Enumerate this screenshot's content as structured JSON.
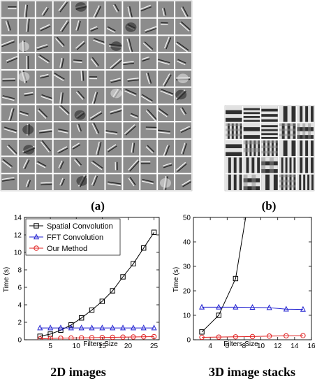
{
  "panels": {
    "a": {
      "label": "(a)",
      "rows": 11,
      "cols": 11
    },
    "b": {
      "label": "(b)",
      "rows": 5,
      "cols": 5
    }
  },
  "chart_data": [
    {
      "type": "line",
      "title": "",
      "caption": "2D images",
      "xlabel": "Filters Size",
      "ylabel": "Time (s)",
      "xlim": [
        0,
        26
      ],
      "ylim": [
        0,
        14
      ],
      "xticks": [
        5,
        10,
        15,
        20,
        25
      ],
      "yticks": [
        0,
        2,
        4,
        6,
        8,
        10,
        12,
        14
      ],
      "grid": false,
      "legend": "top-left",
      "x": [
        3,
        5,
        7,
        9,
        11,
        13,
        15,
        17,
        19,
        21,
        23,
        25
      ],
      "series": [
        {
          "name": "Spatial Convolution",
          "color": "#000000",
          "marker": "square",
          "values": [
            0.4,
            0.65,
            1.1,
            1.7,
            2.5,
            3.4,
            4.4,
            5.6,
            7.2,
            8.7,
            10.5,
            12.3
          ]
        },
        {
          "name": "FFT Convolution",
          "color": "#1f1fd0",
          "marker": "triangle",
          "values": [
            1.35,
            1.35,
            1.35,
            1.35,
            1.35,
            1.35,
            1.35,
            1.35,
            1.35,
            1.35,
            1.35,
            1.35
          ]
        },
        {
          "name": "Our Method",
          "color": "#e02020",
          "marker": "circle",
          "values": [
            0.1,
            0.15,
            0.18,
            0.2,
            0.22,
            0.24,
            0.26,
            0.28,
            0.3,
            0.32,
            0.34,
            0.36
          ]
        }
      ]
    },
    {
      "type": "line",
      "title": "",
      "caption": "3D image stacks",
      "xlabel": "Filters Size",
      "ylabel": "Time (s)",
      "xlim": [
        2,
        16
      ],
      "ylim": [
        0,
        50
      ],
      "xticks": [
        4,
        6,
        8,
        10,
        12,
        14,
        16
      ],
      "xticklabels": [
        "4",
        "6",
        "8",
        "10",
        "12",
        "14",
        "16"
      ],
      "yticks": [
        0,
        10,
        20,
        30,
        40,
        50
      ],
      "grid": false,
      "legend": "none",
      "x": [
        3,
        5,
        7,
        9,
        11,
        13,
        15
      ],
      "series": [
        {
          "name": "Spatial Convolution",
          "color": "#000000",
          "marker": "square",
          "x": [
            3,
            5,
            7,
            8.2
          ],
          "values": [
            3.2,
            10.0,
            25.0,
            50.0
          ],
          "markers_upto": 3
        },
        {
          "name": "FFT Convolution",
          "color": "#1f1fd0",
          "marker": "triangle",
          "values": [
            13.3,
            13.3,
            13.3,
            13.2,
            13.1,
            12.5,
            12.4
          ]
        },
        {
          "name": "Our Method",
          "color": "#e02020",
          "marker": "circle",
          "values": [
            1.0,
            1.1,
            1.2,
            1.3,
            1.5,
            1.6,
            1.7
          ]
        }
      ]
    }
  ]
}
